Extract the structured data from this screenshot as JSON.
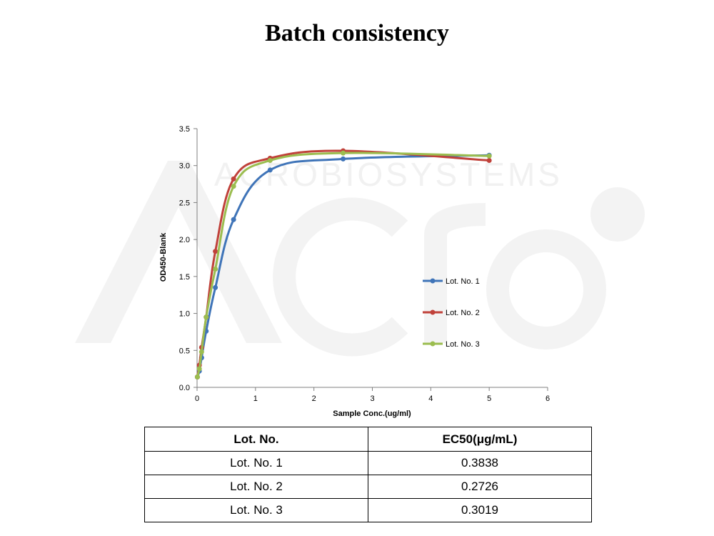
{
  "page": {
    "title": "Batch consistency"
  },
  "chart_data": {
    "type": "line",
    "title": "",
    "xlabel": "Sample Conc.(ug/ml)",
    "ylabel": "OD450-Blank",
    "xlim": [
      0,
      6
    ],
    "ylim": [
      0,
      3.5
    ],
    "x_ticks": [
      "0",
      "1",
      "2",
      "3",
      "4",
      "5",
      "6"
    ],
    "y_ticks": [
      "0.0",
      "0.5",
      "1.0",
      "1.5",
      "2.0",
      "2.5",
      "3.0",
      "3.5"
    ],
    "grid": false,
    "legend_position": "right",
    "x": [
      0.005,
      0.039,
      0.078,
      0.156,
      0.313,
      0.625,
      1.25,
      2.5,
      5
    ],
    "series": [
      {
        "name": "Lot. No. 1",
        "color": "#3f74b8",
        "values": [
          0.14,
          0.22,
          0.4,
          0.76,
          1.35,
          2.27,
          2.94,
          3.09,
          3.14
        ]
      },
      {
        "name": "Lot. No. 2",
        "color": "#c0413a",
        "values": [
          0.14,
          0.3,
          0.54,
          0.95,
          1.84,
          2.82,
          3.1,
          3.2,
          3.07
        ]
      },
      {
        "name": "Lot. No. 3",
        "color": "#9bbd4f",
        "values": [
          0.14,
          0.25,
          0.48,
          0.95,
          1.6,
          2.72,
          3.07,
          3.17,
          3.13
        ]
      }
    ]
  },
  "table": {
    "headers": [
      "Lot. No.",
      "EC50(μg/mL)"
    ],
    "rows": [
      [
        "Lot. No. 1",
        "0.3838"
      ],
      [
        "Lot. No. 2",
        "0.2726"
      ],
      [
        "Lot. No. 3",
        "0.3019"
      ]
    ]
  }
}
